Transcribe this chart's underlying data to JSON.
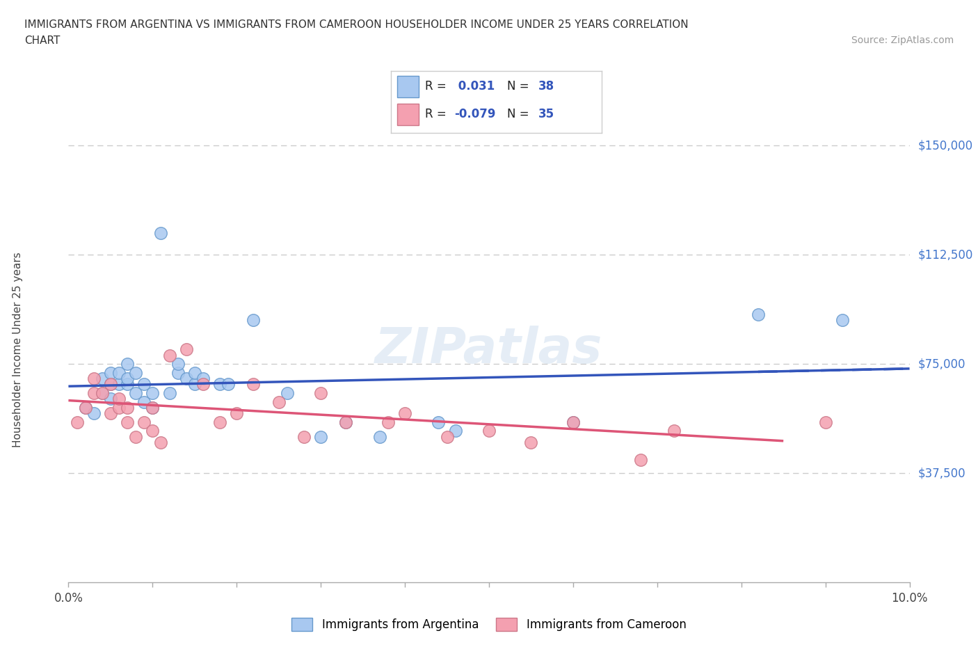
{
  "title_line1": "IMMIGRANTS FROM ARGENTINA VS IMMIGRANTS FROM CAMEROON HOUSEHOLDER INCOME UNDER 25 YEARS CORRELATION",
  "title_line2": "CHART",
  "source_text": "Source: ZipAtlas.com",
  "ylabel": "Householder Income Under 25 years",
  "x_min": 0.0,
  "x_max": 0.1,
  "y_min": 0,
  "y_max": 160000,
  "y_ticks": [
    37500,
    75000,
    112500,
    150000
  ],
  "y_tick_labels": [
    "$37,500",
    "$75,000",
    "$112,500",
    "$150,000"
  ],
  "x_ticks": [
    0.0,
    0.01,
    0.02,
    0.03,
    0.04,
    0.05,
    0.06,
    0.07,
    0.08,
    0.09,
    0.1
  ],
  "x_tick_labels": [
    "0.0%",
    "",
    "",
    "",
    "",
    "",
    "",
    "",
    "",
    "",
    "10.0%"
  ],
  "argentina_color": "#a8c8f0",
  "cameroon_color": "#f4a0b0",
  "argentina_edge_color": "#6699cc",
  "cameroon_edge_color": "#cc7788",
  "argentina_line_color": "#3355bb",
  "cameroon_line_color": "#dd5577",
  "argentina_R": 0.031,
  "argentina_N": 38,
  "cameroon_R": -0.079,
  "cameroon_N": 35,
  "watermark": "ZIPatlas",
  "background_color": "#ffffff",
  "grid_color": "#cccccc",
  "right_label_color": "#4477cc",
  "argentina_x": [
    0.002,
    0.003,
    0.004,
    0.004,
    0.005,
    0.005,
    0.005,
    0.006,
    0.006,
    0.007,
    0.007,
    0.007,
    0.008,
    0.008,
    0.009,
    0.009,
    0.01,
    0.01,
    0.011,
    0.012,
    0.013,
    0.013,
    0.014,
    0.015,
    0.015,
    0.016,
    0.018,
    0.019,
    0.022,
    0.026,
    0.03,
    0.033,
    0.037,
    0.044,
    0.046,
    0.06,
    0.082,
    0.092
  ],
  "argentina_y": [
    60000,
    58000,
    65000,
    70000,
    63000,
    68000,
    72000,
    68000,
    72000,
    68000,
    70000,
    75000,
    65000,
    72000,
    62000,
    68000,
    60000,
    65000,
    120000,
    65000,
    72000,
    75000,
    70000,
    68000,
    72000,
    70000,
    68000,
    68000,
    90000,
    65000,
    50000,
    55000,
    50000,
    55000,
    52000,
    55000,
    92000,
    90000
  ],
  "cameroon_x": [
    0.001,
    0.002,
    0.003,
    0.003,
    0.004,
    0.005,
    0.005,
    0.006,
    0.006,
    0.007,
    0.007,
    0.008,
    0.009,
    0.01,
    0.01,
    0.011,
    0.012,
    0.014,
    0.016,
    0.018,
    0.02,
    0.022,
    0.025,
    0.028,
    0.03,
    0.033,
    0.038,
    0.04,
    0.045,
    0.05,
    0.055,
    0.06,
    0.068,
    0.072,
    0.09
  ],
  "cameroon_y": [
    55000,
    60000,
    65000,
    70000,
    65000,
    58000,
    68000,
    60000,
    63000,
    55000,
    60000,
    50000,
    55000,
    52000,
    60000,
    48000,
    78000,
    80000,
    68000,
    55000,
    58000,
    68000,
    62000,
    50000,
    65000,
    55000,
    55000,
    58000,
    50000,
    52000,
    48000,
    55000,
    42000,
    52000,
    55000
  ]
}
